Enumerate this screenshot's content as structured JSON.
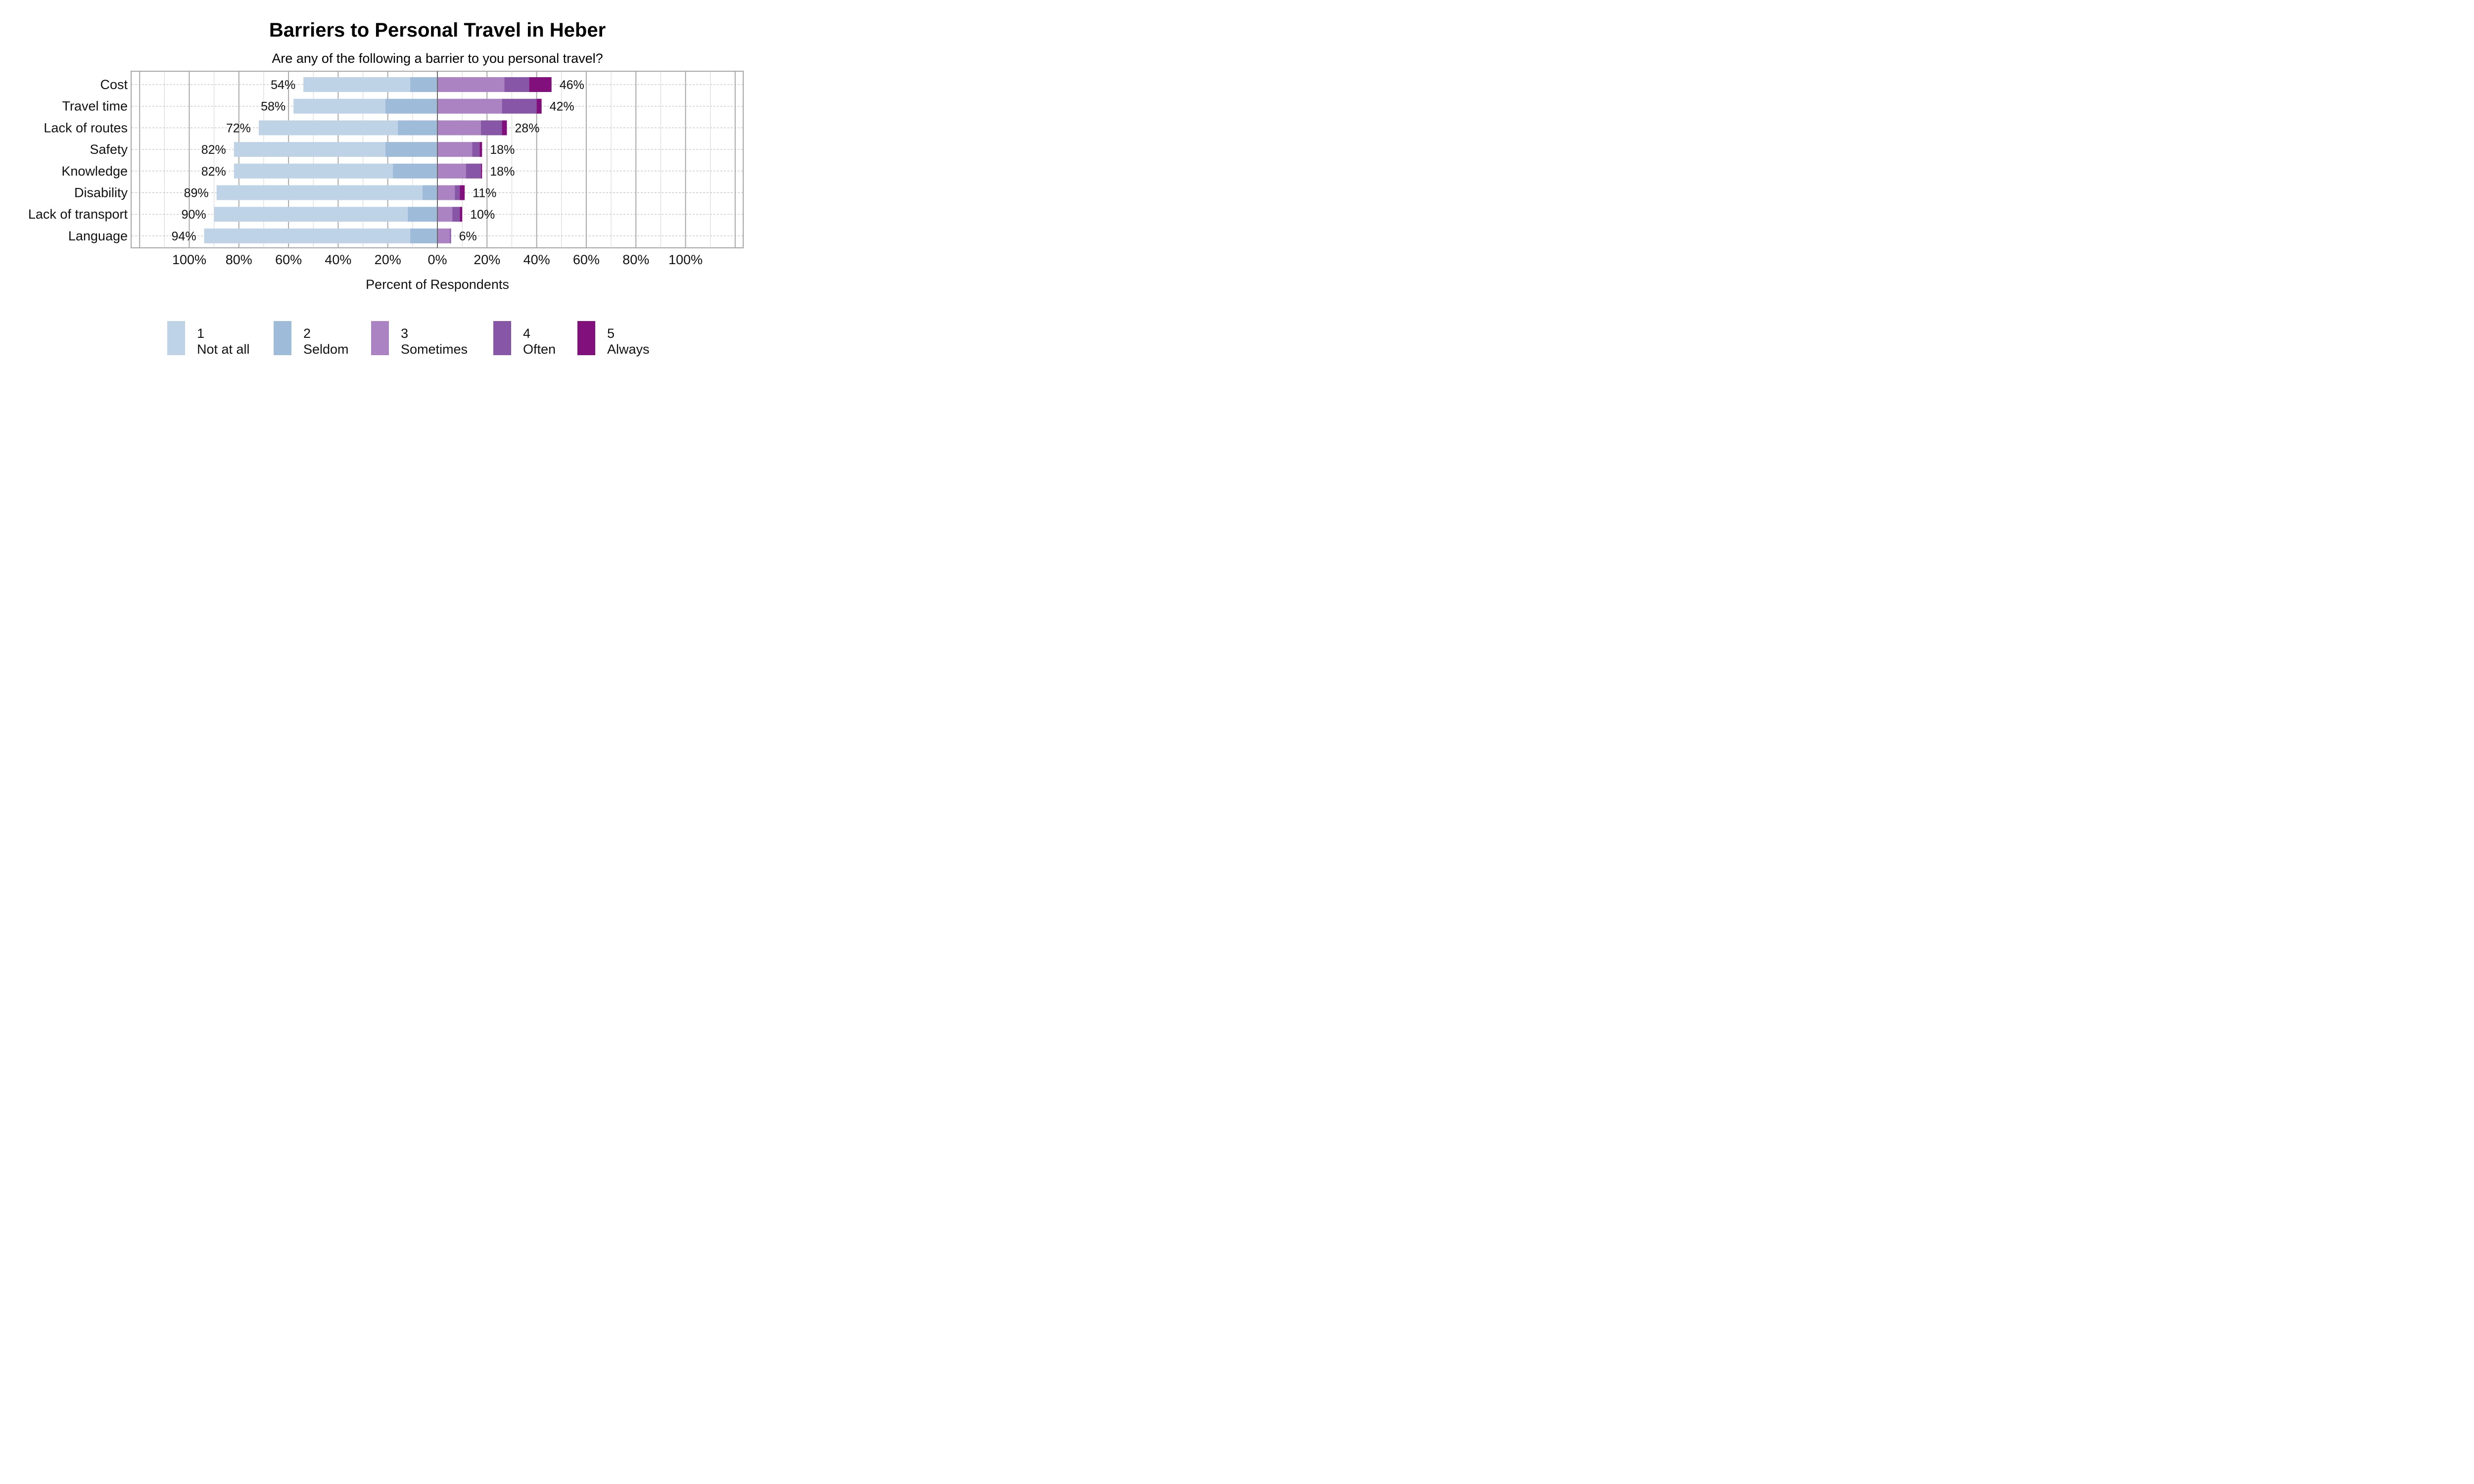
{
  "chart_data": {
    "type": "bar",
    "orientation": "horizontal",
    "stacked": "diverging",
    "title": "Barriers to Personal Travel in Heber",
    "subtitle": "Are any of the following a barrier to you personal travel?",
    "xlabel": "Percent of Respondents",
    "xlim": [
      -100,
      100
    ],
    "x_ticks": [
      -100,
      -80,
      -60,
      -40,
      -20,
      0,
      20,
      40,
      60,
      80,
      100
    ],
    "x_tick_labels": [
      "100%",
      "80%",
      "60%",
      "40%",
      "20%",
      "0%",
      "20%",
      "40%",
      "60%",
      "80%",
      "100%"
    ],
    "grid": true,
    "legend_position": "bottom",
    "categories": [
      "Cost",
      "Travel time",
      "Lack of routes",
      "Safety",
      "Knowledge",
      "Disability",
      "Lack of transport",
      "Language"
    ],
    "series": [
      {
        "name": "1 Not at all",
        "code": "1",
        "label": "Not at all",
        "color": "#bfd3e6",
        "side": "negative",
        "values": [
          43,
          37,
          56,
          61,
          64,
          83,
          78,
          83
        ]
      },
      {
        "name": "2 Seldom",
        "code": "2",
        "label": "Seldom",
        "color": "#9ebcda",
        "side": "negative",
        "values": [
          11,
          21,
          16,
          21,
          18,
          6,
          12,
          11
        ]
      },
      {
        "name": "3 Sometimes",
        "code": "3",
        "label": "Sometimes",
        "color": "#ab82c2",
        "side": "positive",
        "values": [
          27,
          26,
          17.5,
          14,
          11.5,
          7,
          6,
          5
        ]
      },
      {
        "name": "4 Often",
        "code": "4",
        "label": "Often",
        "color": "#8856a7",
        "side": "positive",
        "values": [
          10,
          14,
          8.5,
          3,
          6,
          2,
          3,
          0.5
        ]
      },
      {
        "name": "5 Always",
        "code": "5",
        "label": "Always",
        "color": "#810f7c",
        "side": "positive",
        "values": [
          9,
          2,
          2,
          1,
          0.5,
          2,
          1,
          0
        ]
      }
    ],
    "totals_negative": [
      "54%",
      "58%",
      "72%",
      "82%",
      "82%",
      "89%",
      "90%",
      "94%"
    ],
    "totals_positive": [
      "46%",
      "42%",
      "28%",
      "18%",
      "18%",
      "11%",
      "10%",
      "6%"
    ]
  }
}
